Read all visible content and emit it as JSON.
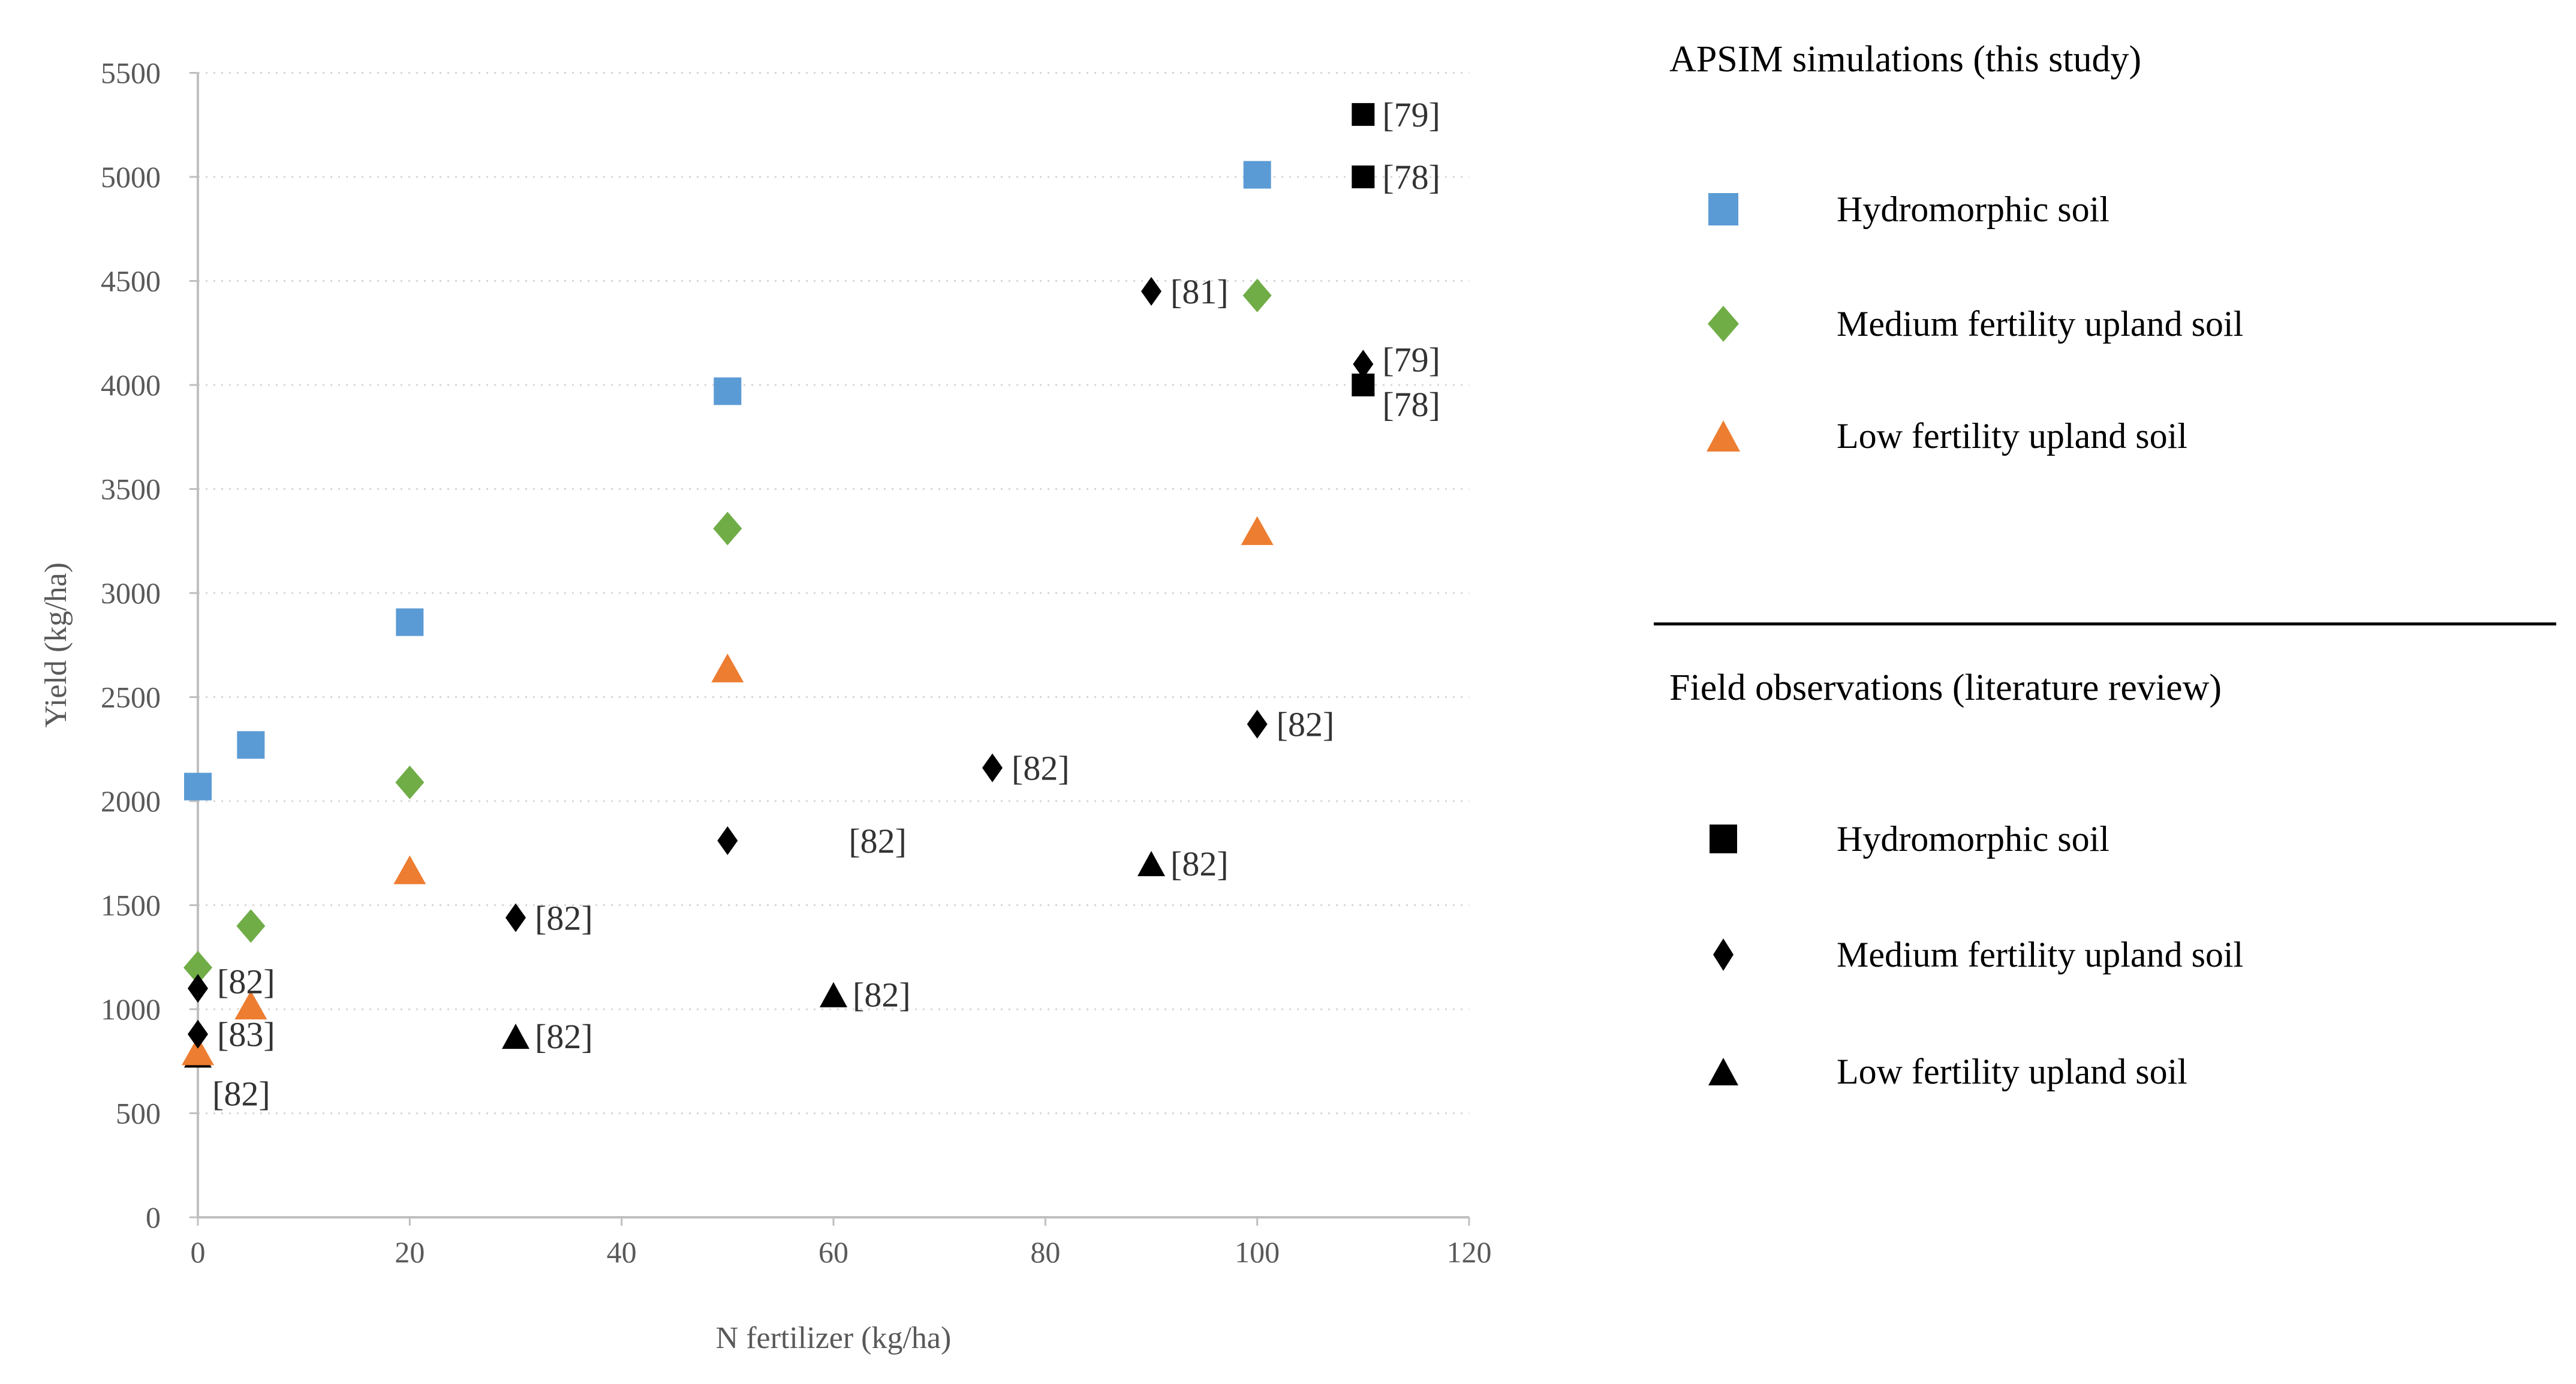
{
  "figure": {
    "background_color": "#ffffff",
    "plot_text_color": "#595959",
    "gridline_color": "#d6d6d6",
    "axis_line_color": "#bfbfbf",
    "point_label_color": "#333333"
  },
  "legend": {
    "sim_title": "APSIM simulations (this study)",
    "field_title": "Field observations (literature review)",
    "sim_items": [
      {
        "label": "Hydromorphic soil",
        "marker": "square",
        "color": "#5B9BD5"
      },
      {
        "label": "Medium fertility upland soil",
        "marker": "diamond",
        "color": "#70AD47"
      },
      {
        "label": "Low fertility upland soil",
        "marker": "triangle",
        "color": "#ED7D31"
      }
    ],
    "field_items": [
      {
        "label": "Hydromorphic soil",
        "marker": "square",
        "color": "#000000"
      },
      {
        "label": "Medium fertility upland soil",
        "marker": "diamond",
        "color": "#000000"
      },
      {
        "label": "Low fertility upland soil",
        "marker": "triangle",
        "color": "#000000"
      }
    ]
  },
  "chart_data": {
    "type": "scatter",
    "title": "",
    "xlabel": "N fertilizer (kg/ha)",
    "ylabel": "Yield (kg/ha)",
    "xlim": [
      0,
      120
    ],
    "ylim": [
      0,
      5500
    ],
    "xtick_step": 20,
    "ytick_step": 500,
    "xticks": [
      0,
      20,
      40,
      60,
      80,
      100,
      120
    ],
    "yticks": [
      0,
      500,
      1000,
      1500,
      2000,
      2500,
      3000,
      3500,
      4000,
      4500,
      5000,
      5500
    ],
    "grid": "horizontal dotted gridlines only",
    "legend_position": "right",
    "series": [
      {
        "name": "APSIM simulation - Hydromorphic soil",
        "group": "simulation",
        "marker": "square",
        "color": "#5B9BD5",
        "points": [
          {
            "x": 0,
            "y": 2070
          },
          {
            "x": 5,
            "y": 2270
          },
          {
            "x": 20,
            "y": 2860
          },
          {
            "x": 50,
            "y": 3970
          },
          {
            "x": 100,
            "y": 5010
          }
        ]
      },
      {
        "name": "APSIM simulation - Medium fertility upland soil",
        "group": "simulation",
        "marker": "diamond",
        "color": "#70AD47",
        "points": [
          {
            "x": 0,
            "y": 1200
          },
          {
            "x": 5,
            "y": 1400
          },
          {
            "x": 20,
            "y": 2090
          },
          {
            "x": 50,
            "y": 3310
          },
          {
            "x": 100,
            "y": 4430
          }
        ]
      },
      {
        "name": "APSIM simulation - Low fertility upland soil",
        "group": "simulation",
        "marker": "triangle",
        "color": "#ED7D31",
        "points": [
          {
            "x": 0,
            "y": 800
          },
          {
            "x": 5,
            "y": 1020
          },
          {
            "x": 20,
            "y": 1670
          },
          {
            "x": 50,
            "y": 2640
          },
          {
            "x": 100,
            "y": 3300
          }
        ]
      },
      {
        "name": "Field observation - Hydromorphic soil",
        "group": "field observation",
        "marker": "square",
        "color": "#000000",
        "points": [
          {
            "x": 110,
            "y": 5300,
            "label": "[79]"
          },
          {
            "x": 110,
            "y": 5000,
            "label": "[78]"
          },
          {
            "x": 110,
            "y": 4000,
            "label": "[78]",
            "ldy": 52
          }
        ]
      },
      {
        "name": "Field observation - Medium fertility upland soil",
        "group": "field observation",
        "marker": "diamond",
        "color": "#000000",
        "points": [
          {
            "x": 0,
            "y": 1100,
            "label": "[82]",
            "ldy": 8
          },
          {
            "x": 0,
            "y": 880,
            "label": "[83]"
          },
          {
            "x": 30,
            "y": 1440,
            "label": "[82]"
          },
          {
            "x": 50,
            "y": 1810,
            "label": "[82]",
            "ldx": 202
          },
          {
            "x": 75,
            "y": 2160,
            "label": "[82]"
          },
          {
            "x": 90,
            "y": 4450,
            "label": "[81]"
          },
          {
            "x": 100,
            "y": 2370,
            "label": "[82]"
          },
          {
            "x": 110,
            "y": 4100,
            "label": "[79]",
            "ldy": 12
          }
        ]
      },
      {
        "name": "Field observation - Low fertility upland soil",
        "group": "field observation",
        "marker": "triangle",
        "color": "#000000",
        "points": [
          {
            "x": 0,
            "y": 780,
            "label": "[82]",
            "ldx": 24,
            "ldy": 84
          },
          {
            "x": 30,
            "y": 870,
            "label": "[82]"
          },
          {
            "x": 60,
            "y": 1070,
            "label": "[82]"
          },
          {
            "x": 90,
            "y": 1700,
            "label": "[82]"
          }
        ]
      }
    ]
  }
}
